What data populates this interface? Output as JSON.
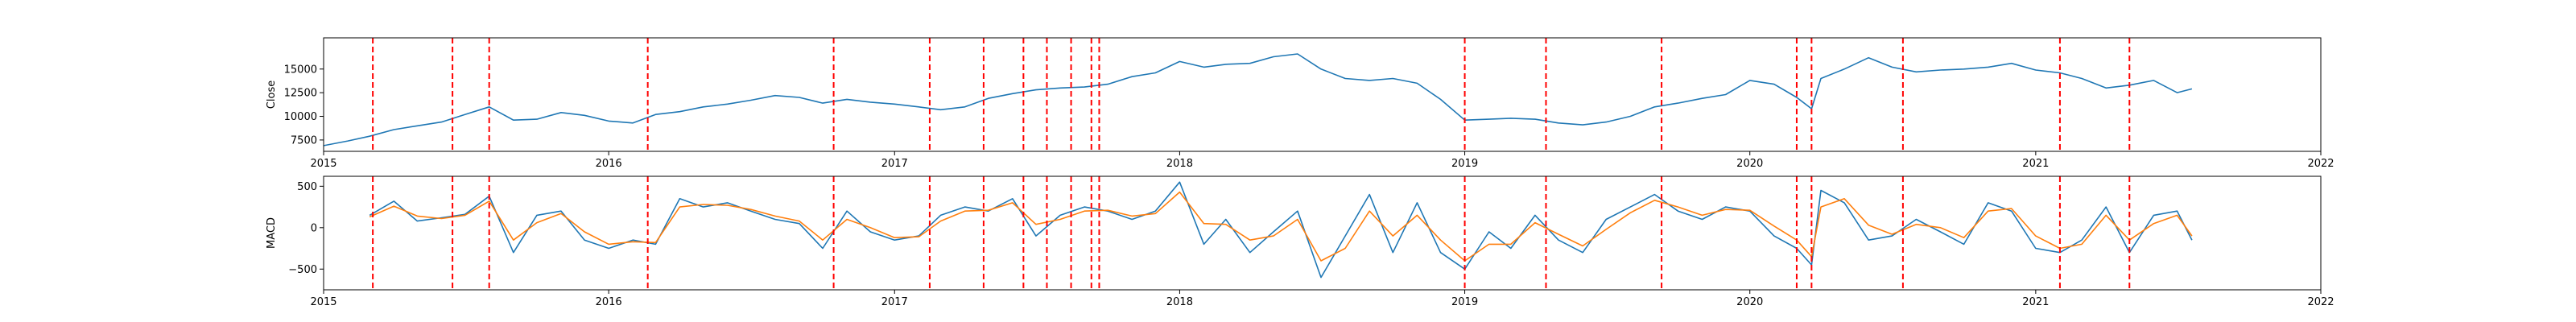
{
  "chart_data": [
    {
      "type": "line",
      "ylabel": "Close",
      "xlim": [
        "2015-01-01",
        "2022-01-01"
      ],
      "ylim": [
        6300,
        18300
      ],
      "x_ticks": [
        "2015",
        "2016",
        "2017",
        "2018",
        "2019",
        "2020",
        "2021",
        "2022"
      ],
      "y_ticks": [
        7500,
        10000,
        12500,
        15000
      ],
      "series": [
        {
          "color": "#1f77b4",
          "x": [
            "2015-01-01",
            "2015-02-01",
            "2015-03-01",
            "2015-04-01",
            "2015-05-01",
            "2015-06-01",
            "2015-07-01",
            "2015-08-01",
            "2015-09-01",
            "2015-10-01",
            "2015-11-01",
            "2015-12-01",
            "2016-01-01",
            "2016-02-01",
            "2016-03-01",
            "2016-04-01",
            "2016-05-01",
            "2016-06-01",
            "2016-07-01",
            "2016-08-01",
            "2016-09-01",
            "2016-10-01",
            "2016-11-01",
            "2016-12-01",
            "2017-01-01",
            "2017-02-01",
            "2017-03-01",
            "2017-04-01",
            "2017-05-01",
            "2017-06-01",
            "2017-07-01",
            "2017-08-01",
            "2017-09-01",
            "2017-10-01",
            "2017-11-01",
            "2017-12-01",
            "2018-01-01",
            "2018-02-01",
            "2018-03-01",
            "2018-04-01",
            "2018-05-01",
            "2018-06-01",
            "2018-07-01",
            "2018-08-01",
            "2018-09-01",
            "2018-10-01",
            "2018-11-01",
            "2018-12-01",
            "2019-01-01",
            "2019-02-01",
            "2019-03-01",
            "2019-04-01",
            "2019-05-01",
            "2019-06-01",
            "2019-07-01",
            "2019-08-01",
            "2019-09-01",
            "2019-10-01",
            "2019-11-01",
            "2019-12-01",
            "2020-01-01",
            "2020-02-01",
            "2020-03-01",
            "2020-03-20",
            "2020-04-01",
            "2020-05-01",
            "2020-06-01",
            "2020-07-01",
            "2020-08-01",
            "2020-09-01",
            "2020-10-01",
            "2020-11-01",
            "2020-12-01",
            "2021-01-01",
            "2021-02-01",
            "2021-03-01",
            "2021-04-01",
            "2021-05-01",
            "2021-06-01",
            "2021-07-01",
            "2021-07-20"
          ],
          "y": [
            6900,
            7400,
            7900,
            8600,
            9000,
            9400,
            10200,
            11000,
            9600,
            9700,
            10400,
            10100,
            9500,
            9300,
            10200,
            10500,
            11000,
            11300,
            11700,
            12200,
            12000,
            11400,
            11800,
            11500,
            11300,
            11000,
            10700,
            11000,
            11900,
            12400,
            12800,
            13000,
            13100,
            13400,
            14200,
            14600,
            15800,
            15200,
            15500,
            15600,
            16300,
            16600,
            15000,
            14000,
            13800,
            14000,
            13500,
            11800,
            9600,
            9700,
            9800,
            9700,
            9300,
            9100,
            9400,
            10000,
            11000,
            11400,
            11900,
            12300,
            13800,
            13400,
            12000,
            10800,
            14000,
            15000,
            16200,
            15200,
            14700,
            14900,
            15000,
            15200,
            15600,
            14900,
            14600,
            14000,
            13000,
            13300,
            13800,
            12500,
            12900
          ]
        }
      ]
    },
    {
      "type": "line",
      "ylabel": "MACD",
      "xlim": [
        "2015-01-01",
        "2022-01-01"
      ],
      "ylim": [
        -750,
        620
      ],
      "x_ticks": [
        "2015",
        "2016",
        "2017",
        "2018",
        "2019",
        "2020",
        "2021",
        "2022"
      ],
      "y_ticks": [
        500,
        0,
        -500
      ],
      "series": [
        {
          "color": "#1f77b4",
          "x": [
            "2015-03-01",
            "2015-04-01",
            "2015-05-01",
            "2015-06-01",
            "2015-07-01",
            "2015-08-01",
            "2015-09-01",
            "2015-10-01",
            "2015-11-01",
            "2015-12-01",
            "2016-01-01",
            "2016-02-01",
            "2016-03-01",
            "2016-04-01",
            "2016-05-01",
            "2016-06-01",
            "2016-07-01",
            "2016-08-01",
            "2016-09-01",
            "2016-10-01",
            "2016-11-01",
            "2016-12-01",
            "2017-01-01",
            "2017-02-01",
            "2017-03-01",
            "2017-04-01",
            "2017-05-01",
            "2017-06-01",
            "2017-07-01",
            "2017-08-01",
            "2017-09-01",
            "2017-10-01",
            "2017-11-01",
            "2017-12-01",
            "2018-01-01",
            "2018-02-01",
            "2018-03-01",
            "2018-04-01",
            "2018-05-01",
            "2018-06-01",
            "2018-07-01",
            "2018-08-01",
            "2018-09-01",
            "2018-10-01",
            "2018-11-01",
            "2018-12-01",
            "2019-01-01",
            "2019-02-01",
            "2019-03-01",
            "2019-04-01",
            "2019-05-01",
            "2019-06-01",
            "2019-07-01",
            "2019-08-01",
            "2019-09-01",
            "2019-10-01",
            "2019-11-01",
            "2019-12-01",
            "2020-01-01",
            "2020-02-01",
            "2020-03-01",
            "2020-03-20",
            "2020-04-01",
            "2020-05-01",
            "2020-06-01",
            "2020-07-01",
            "2020-08-01",
            "2020-09-01",
            "2020-10-01",
            "2020-11-01",
            "2020-12-01",
            "2021-01-01",
            "2021-02-01",
            "2021-03-01",
            "2021-04-01",
            "2021-05-01",
            "2021-06-01",
            "2021-07-01",
            "2021-07-20"
          ],
          "y": [
            150,
            320,
            80,
            120,
            160,
            380,
            -300,
            150,
            200,
            -150,
            -250,
            -150,
            -200,
            350,
            250,
            300,
            200,
            100,
            50,
            -250,
            200,
            -50,
            -150,
            -100,
            150,
            250,
            200,
            350,
            -100,
            150,
            250,
            200,
            100,
            200,
            550,
            -200,
            100,
            -300,
            -50,
            200,
            -600,
            -100,
            400,
            -300,
            300,
            -300,
            -500,
            -50,
            -250,
            150,
            -150,
            -300,
            100,
            250,
            400,
            200,
            100,
            250,
            200,
            -100,
            -250,
            -450,
            450,
            300,
            -150,
            -100,
            100,
            -50,
            -200,
            300,
            200,
            -250,
            -300,
            -150,
            250,
            -300,
            150,
            200,
            -150
          ]
        },
        {
          "color": "#ff7f0e",
          "x": [
            "2015-03-01",
            "2015-04-01",
            "2015-05-01",
            "2015-06-01",
            "2015-07-01",
            "2015-08-01",
            "2015-09-01",
            "2015-10-01",
            "2015-11-01",
            "2015-12-01",
            "2016-01-01",
            "2016-02-01",
            "2016-03-01",
            "2016-04-01",
            "2016-05-01",
            "2016-06-01",
            "2016-07-01",
            "2016-08-01",
            "2016-09-01",
            "2016-10-01",
            "2016-11-01",
            "2016-12-01",
            "2017-01-01",
            "2017-02-01",
            "2017-03-01",
            "2017-04-01",
            "2017-05-01",
            "2017-06-01",
            "2017-07-01",
            "2017-08-01",
            "2017-09-01",
            "2017-10-01",
            "2017-11-01",
            "2017-12-01",
            "2018-01-01",
            "2018-02-01",
            "2018-03-01",
            "2018-04-01",
            "2018-05-01",
            "2018-06-01",
            "2018-07-01",
            "2018-08-01",
            "2018-09-01",
            "2018-10-01",
            "2018-11-01",
            "2018-12-01",
            "2019-01-01",
            "2019-02-01",
            "2019-03-01",
            "2019-04-01",
            "2019-05-01",
            "2019-06-01",
            "2019-07-01",
            "2019-08-01",
            "2019-09-01",
            "2019-10-01",
            "2019-11-01",
            "2019-12-01",
            "2020-01-01",
            "2020-02-01",
            "2020-03-01",
            "2020-03-20",
            "2020-04-01",
            "2020-05-01",
            "2020-06-01",
            "2020-07-01",
            "2020-08-01",
            "2020-09-01",
            "2020-10-01",
            "2020-11-01",
            "2020-12-01",
            "2021-01-01",
            "2021-02-01",
            "2021-03-01",
            "2021-04-01",
            "2021-05-01",
            "2021-06-01",
            "2021-07-01",
            "2021-07-20"
          ],
          "y": [
            130,
            260,
            140,
            110,
            150,
            320,
            -150,
            60,
            170,
            -50,
            -200,
            -170,
            -180,
            250,
            280,
            270,
            220,
            140,
            80,
            -150,
            100,
            0,
            -120,
            -110,
            80,
            200,
            210,
            300,
            40,
            100,
            200,
            210,
            140,
            170,
            430,
            50,
            40,
            -150,
            -100,
            100,
            -400,
            -250,
            200,
            -100,
            150,
            -150,
            -400,
            -200,
            -200,
            60,
            -80,
            -220,
            -20,
            180,
            330,
            250,
            150,
            220,
            210,
            20,
            -150,
            -350,
            250,
            350,
            30,
            -80,
            40,
            0,
            -120,
            200,
            230,
            -100,
            -250,
            -200,
            150,
            -150,
            50,
            150,
            -100
          ]
        }
      ]
    }
  ],
  "events": {
    "line_color": "#ff0000",
    "dates": [
      "2015-03-05",
      "2015-06-15",
      "2015-08-01",
      "2016-02-20",
      "2016-10-15",
      "2017-02-15",
      "2017-04-25",
      "2017-06-15",
      "2017-07-15",
      "2017-08-15",
      "2017-09-10",
      "2017-09-20",
      "2019-01-01",
      "2019-04-15",
      "2019-09-10",
      "2020-03-01",
      "2020-03-20",
      "2020-07-15",
      "2021-02-01",
      "2021-05-01"
    ]
  }
}
